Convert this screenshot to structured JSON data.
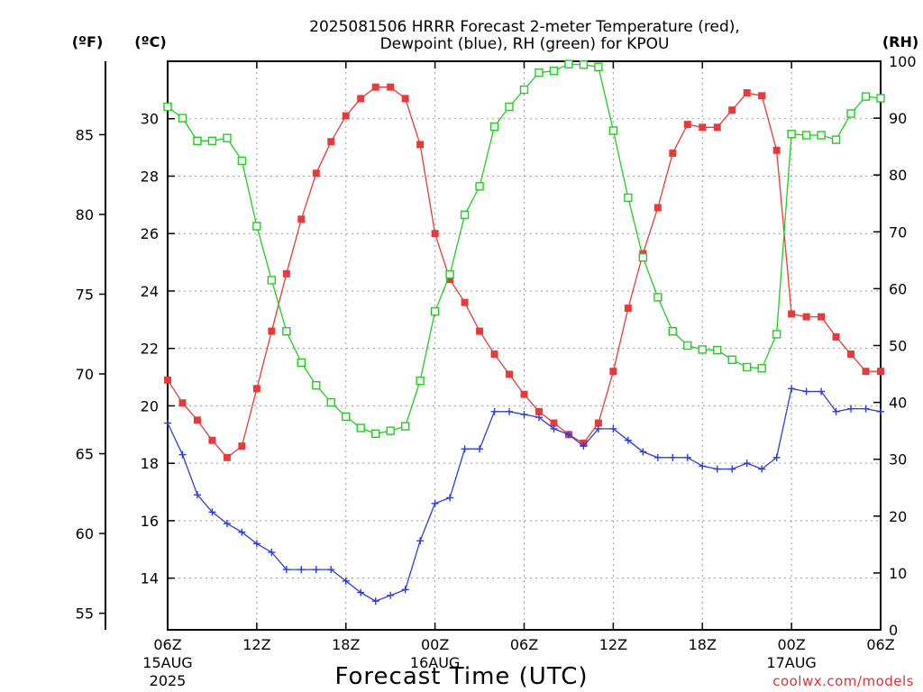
{
  "chart_data": {
    "type": "line",
    "title_line1": "2025081506 HRRR Forecast 2-meter Temperature (red),",
    "title_line2": "Dewpoint (blue), RH (green) for KPOU",
    "xlabel": "Forecast Time (UTC)",
    "credit": "coolwx.com/models",
    "units": {
      "fahrenheit": "(ºF)",
      "celsius": "(ºC)",
      "rh": "(RH)"
    },
    "x_start_hour": 6,
    "x_end_hour": 54,
    "x_step_hours": 1,
    "x_ticks": [
      {
        "hour": 6,
        "label": "06Z",
        "date": "15AUG",
        "year": "2025"
      },
      {
        "hour": 12,
        "label": "12Z",
        "date": "",
        "year": ""
      },
      {
        "hour": 18,
        "label": "18Z",
        "date": "",
        "year": ""
      },
      {
        "hour": 24,
        "label": "00Z",
        "date": "16AUG",
        "year": ""
      },
      {
        "hour": 30,
        "label": "06Z",
        "date": "",
        "year": ""
      },
      {
        "hour": 36,
        "label": "12Z",
        "date": "",
        "year": ""
      },
      {
        "hour": 42,
        "label": "18Z",
        "date": "",
        "year": ""
      },
      {
        "hour": 48,
        "label": "00Z",
        "date": "17AUG",
        "year": ""
      },
      {
        "hour": 54,
        "label": "06Z",
        "date": "",
        "year": ""
      }
    ],
    "celsius_axis": {
      "min": 12.2,
      "max": 32,
      "ticks": [
        14,
        16,
        18,
        20,
        22,
        24,
        26,
        28,
        30
      ]
    },
    "fahrenheit_axis": {
      "ticks": [
        55,
        60,
        65,
        70,
        75,
        80,
        85
      ]
    },
    "rh_axis": {
      "min": 0,
      "max": 100,
      "ticks": [
        0,
        10,
        20,
        30,
        40,
        50,
        60,
        70,
        80,
        90,
        100
      ]
    },
    "grid": true,
    "series": [
      {
        "name": "Temperature",
        "color": "#e83a3a",
        "axis": "celsius",
        "marker": "filled-square",
        "values": [
          20.9,
          20.1,
          19.5,
          18.8,
          18.2,
          18.6,
          20.6,
          22.6,
          24.6,
          26.5,
          28.1,
          29.2,
          30.1,
          30.7,
          31.1,
          31.1,
          30.7,
          29.1,
          26.0,
          24.4,
          23.6,
          22.6,
          21.8,
          21.1,
          20.4,
          19.8,
          19.4,
          19.0,
          18.7,
          19.4,
          21.2,
          23.4,
          25.3,
          26.9,
          28.8,
          29.8,
          29.7,
          29.7,
          30.3,
          30.9,
          30.8,
          28.9,
          23.2,
          23.1,
          23.1,
          22.4,
          21.8,
          21.2,
          21.2
        ]
      },
      {
        "name": "Dewpoint",
        "color": "#2a3ee0",
        "axis": "celsius",
        "marker": "plus",
        "values": [
          19.4,
          18.3,
          16.9,
          16.3,
          15.9,
          15.6,
          15.2,
          14.9,
          14.3,
          14.3,
          14.3,
          14.3,
          13.9,
          13.5,
          13.2,
          13.4,
          13.6,
          15.3,
          16.6,
          16.8,
          18.5,
          18.5,
          19.8,
          19.8,
          19.7,
          19.6,
          19.2,
          19.0,
          18.6,
          19.2,
          19.2,
          18.8,
          18.4,
          18.2,
          18.2,
          18.2,
          17.9,
          17.8,
          17.8,
          18.0,
          17.8,
          18.2,
          20.6,
          20.5,
          20.5,
          19.8,
          19.9,
          19.9,
          19.8
        ]
      },
      {
        "name": "RH",
        "color": "#22cc22",
        "axis": "rh",
        "marker": "open-square",
        "values": [
          92,
          90,
          86,
          86,
          86.5,
          82.5,
          71,
          61.5,
          52.5,
          47,
          43,
          40,
          37.5,
          35.5,
          34.5,
          35,
          35.8,
          43.8,
          56,
          62.5,
          73,
          78,
          88.5,
          92,
          95,
          98,
          98.3,
          99.5,
          99.4,
          99,
          87.8,
          76,
          65.5,
          58.5,
          52.5,
          50,
          49.3,
          49.2,
          47.5,
          46.2,
          46,
          52,
          87.2,
          87,
          87,
          86.2,
          90.8,
          93.8,
          93.5
        ]
      }
    ]
  }
}
